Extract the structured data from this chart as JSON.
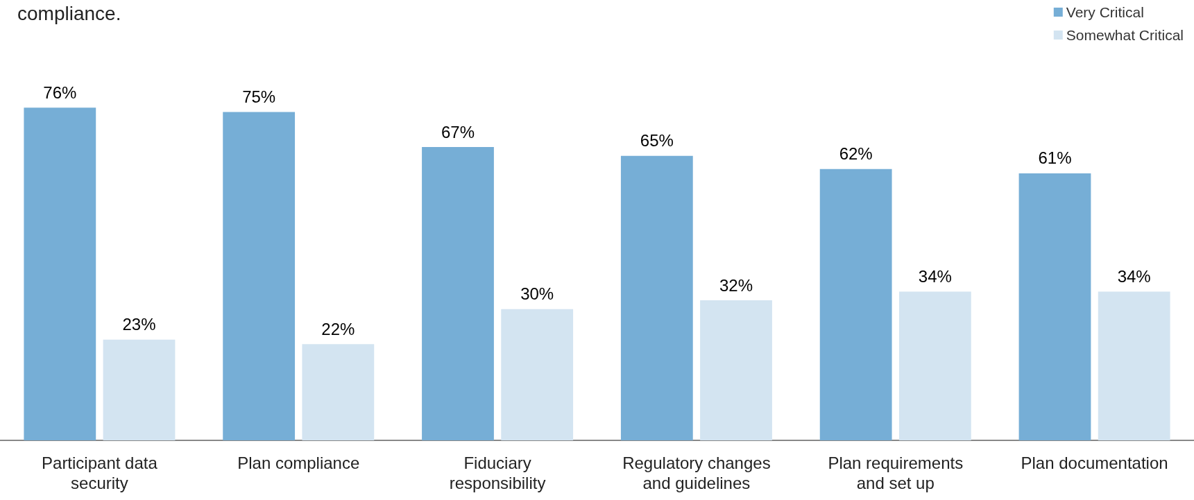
{
  "chart_data": {
    "type": "bar",
    "title": "compliance.",
    "categories": [
      "Participant data\nsecurity",
      "Plan compliance",
      "Fiduciary\nresponsibility",
      "Regulatory changes\nand guidelines",
      "Plan requirements\nand set up",
      "Plan documentation"
    ],
    "series": [
      {
        "name": "Very Critical",
        "color": "#76aed6",
        "values": [
          76,
          75,
          67,
          65,
          62,
          61
        ],
        "value_labels": [
          "76%",
          "75%",
          "67%",
          "65%",
          "62%",
          "61%"
        ]
      },
      {
        "name": "Somewhat Critical",
        "color": "#d3e4f1",
        "values": [
          23,
          22,
          30,
          32,
          34,
          34
        ],
        "value_labels": [
          "23%",
          "22%",
          "30%",
          "32%",
          "34%",
          "34%"
        ]
      }
    ],
    "legend": "top right"
  }
}
